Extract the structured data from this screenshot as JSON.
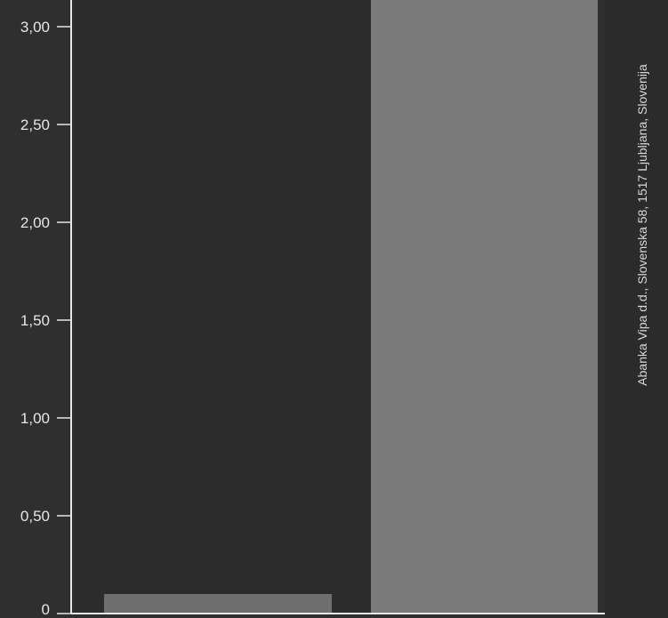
{
  "chart_data": {
    "type": "bar",
    "categories": [
      "",
      ""
    ],
    "values": [
      0.1,
      3.15
    ],
    "ylim": [
      0,
      3.15
    ],
    "yticks": [
      0,
      0.5,
      1.0,
      1.5,
      2.0,
      2.5,
      3.0
    ],
    "ytick_labels": [
      "0",
      "0,50",
      "1,00",
      "1,50",
      "2,00",
      "2,50",
      "3,00"
    ],
    "grid": false,
    "title": "",
    "xlabel": "",
    "ylabel": "",
    "colors": {
      "background": "#2f2f2f",
      "bar1": "#6e6e6e",
      "bar2": "#7a7a7a",
      "axis": "#e6e6e6"
    }
  },
  "credit": "Abanka Vipa d.d., Slovenska 58, 1517 Ljubljana, Slovenija"
}
